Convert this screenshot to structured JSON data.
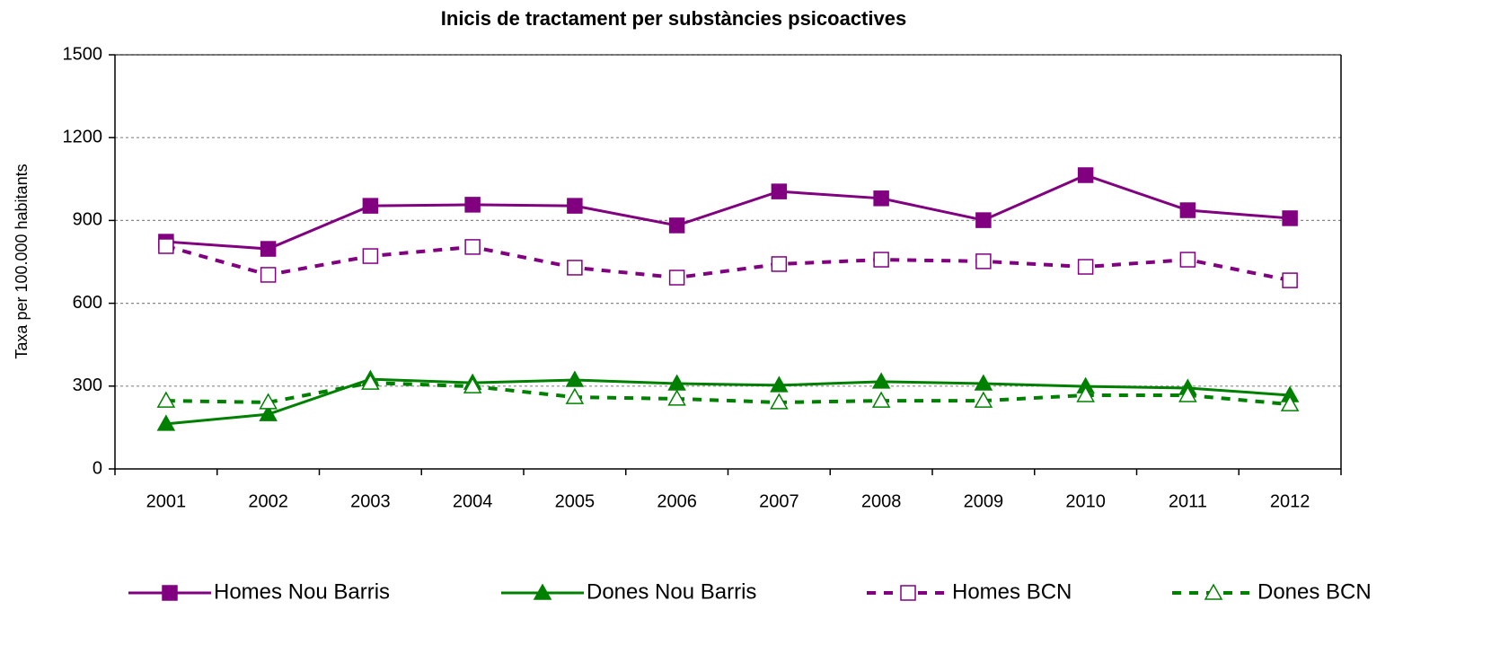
{
  "chart_data": {
    "type": "line",
    "title": "Inicis de tractament per substàncies psicoactives",
    "y_label": "Taxa per 100.000 habitants",
    "categories": [
      "2001",
      "2002",
      "2003",
      "2004",
      "2005",
      "2006",
      "2007",
      "2008",
      "2009",
      "2010",
      "2011",
      "2012"
    ],
    "ylim": [
      0,
      1500
    ],
    "yticks": [
      0,
      300,
      600,
      900,
      1200,
      1500
    ],
    "grid": true,
    "legend": "bottom",
    "series": [
      {
        "name": "Homes Nou Barris",
        "color": "#800080",
        "marker": "square",
        "filled": true,
        "dashed": false,
        "values": [
          823,
          797,
          953,
          957,
          953,
          882,
          1005,
          980,
          901,
          1064,
          937,
          908
        ]
      },
      {
        "name": "Dones Nou Barris",
        "color": "#008000",
        "marker": "triangle",
        "filled": true,
        "dashed": false,
        "values": [
          163,
          198,
          325,
          312,
          322,
          309,
          303,
          316,
          309,
          299,
          293,
          267
        ]
      },
      {
        "name": "Homes BCN",
        "color": "#800080",
        "marker": "square",
        "filled": false,
        "dashed": true,
        "values": [
          807,
          703,
          771,
          804,
          729,
          693,
          742,
          758,
          752,
          732,
          758,
          683
        ]
      },
      {
        "name": "Dones BCN",
        "color": "#008000",
        "marker": "triangle",
        "filled": false,
        "dashed": true,
        "values": [
          247,
          241,
          312,
          299,
          260,
          254,
          241,
          247,
          247,
          267,
          267,
          234
        ]
      }
    ]
  }
}
